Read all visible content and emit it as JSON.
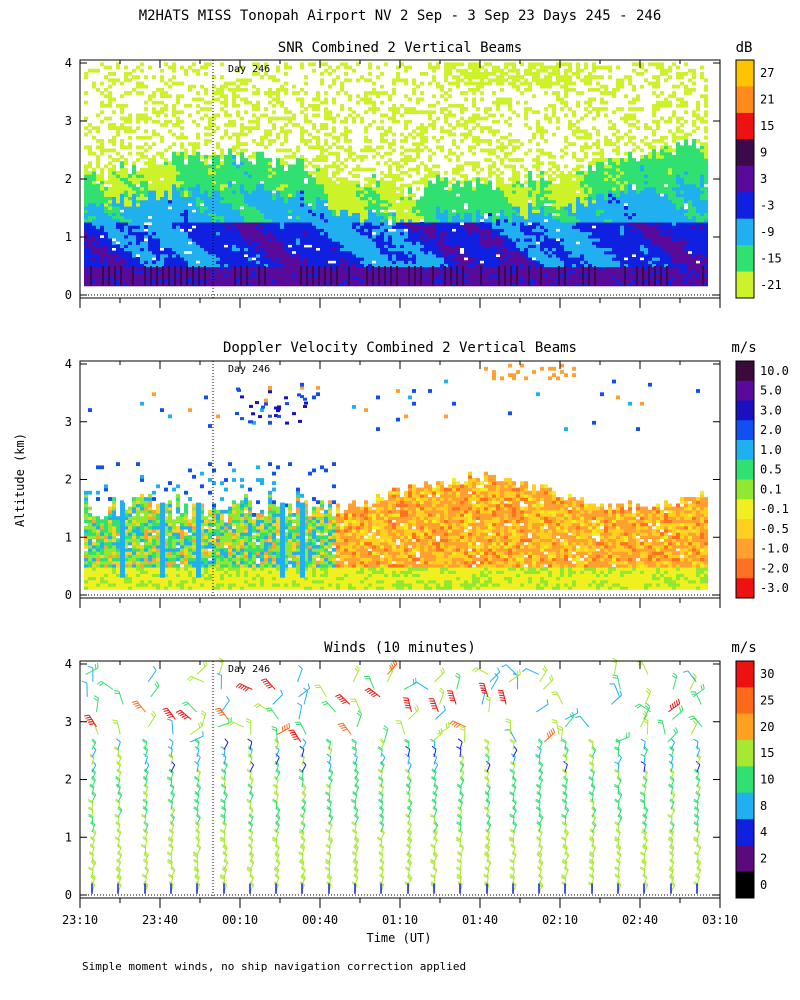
{
  "title": "M2HATS MISS Tonopah Airport NV   2 Sep -  3 Sep 23 Days 245 - 246",
  "footnote": "Simple moment winds, no ship navigation correction applied",
  "chart_data": [
    {
      "type": "heatmap",
      "title": "SNR Combined 2 Vertical Beams",
      "xlabel": "Time (UT)",
      "ylabel": "Altitude (km)",
      "ylim": [
        0,
        4
      ],
      "yticks": [
        0,
        1,
        2,
        3,
        4
      ],
      "day_marker": "Day 246",
      "colorbar_unit": "dB",
      "colorbar_labels": [
        "27",
        "21",
        "15",
        "9",
        "3",
        "-3",
        "-9",
        "-15",
        "-21"
      ],
      "colorbar_colors": [
        "#ffc400",
        "#ff8c1a",
        "#ee1111",
        "#3a0a4a",
        "#5a0a9a",
        "#1020e0",
        "#20b0f0",
        "#30e070",
        "#ccf22a"
      ],
      "profile": [
        {
          "altitude_km": 0.5,
          "snr_db": 6
        },
        {
          "altitude_km": 1.0,
          "snr_db": 0
        },
        {
          "altitude_km": 1.5,
          "snr_db": -9
        },
        {
          "altitude_km": 2.0,
          "snr_db": -18
        },
        {
          "altitude_km": 3.0,
          "snr_db": -21
        }
      ]
    },
    {
      "type": "heatmap",
      "title": "Doppler Velocity Combined 2 Vertical Beams",
      "xlabel": "Time (UT)",
      "ylabel": "Altitude (km)",
      "ylim": [
        0,
        4
      ],
      "yticks": [
        0,
        1,
        2,
        3,
        4
      ],
      "day_marker": "Day 246",
      "colorbar_unit": "m/s",
      "colorbar_labels": [
        "10.0",
        "5.0",
        "3.0",
        "2.0",
        "1.0",
        "0.5",
        "0.1",
        "-0.1",
        "-0.5",
        "-1.0",
        "-2.0",
        "-3.0"
      ],
      "colorbar_colors": [
        "#3a0a3a",
        "#5a0a9a",
        "#1a10c0",
        "#1050f0",
        "#20b0f0",
        "#30e070",
        "#90e830",
        "#f0f020",
        "#ffd020",
        "#ffa030",
        "#ff7020",
        "#ee1111"
      ],
      "profile": [
        {
          "altitude_km": 0.3,
          "velocity_ms": -0.3
        },
        {
          "altitude_km": 1.0,
          "velocity_ms": -1.0
        },
        {
          "altitude_km": 1.8,
          "velocity_ms": -1.2
        }
      ]
    },
    {
      "type": "scatter",
      "title": "Winds (10 minutes)",
      "xlabel": "Time (UT)",
      "ylabel": "Altitude (km)",
      "ylim": [
        0,
        4
      ],
      "yticks": [
        0,
        1,
        2,
        3,
        4
      ],
      "xticks": [
        "23:10",
        "23:40",
        "00:10",
        "00:40",
        "01:10",
        "01:40",
        "02:10",
        "02:40",
        "03:10"
      ],
      "day_marker": "Day 246",
      "colorbar_unit": "m/s",
      "colorbar_labels": [
        "30",
        "25",
        "20",
        "15",
        "10",
        "8",
        "4",
        "2",
        "0"
      ],
      "colorbar_colors": [
        "#ee1111",
        "#ff6a1a",
        "#ffa020",
        "#a8e830",
        "#30e070",
        "#20b0f0",
        "#1020e0",
        "#5a0a7a",
        "#000000"
      ],
      "profile": [
        {
          "altitude_km": 0.5,
          "speed_ms": 13
        },
        {
          "altitude_km": 1.5,
          "speed_ms": 11
        },
        {
          "altitude_km": 2.5,
          "speed_ms": 9
        },
        {
          "altitude_km": 3.5,
          "speed_ms": 16
        }
      ]
    }
  ]
}
